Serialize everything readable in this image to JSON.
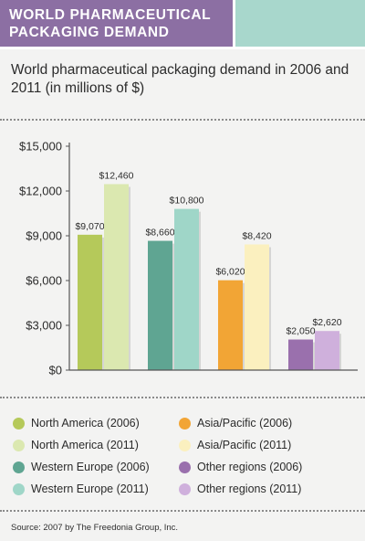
{
  "header": {
    "banner_title": "WORLD PHARMACEUTICAL PACKAGING DEMAND",
    "subtitle": "World pharmaceutical packaging demand in 2006 and 2011 (in millions of $)",
    "banner_color": "#8c6fa3",
    "accent_color": "#a8d7cc"
  },
  "chart_data": {
    "type": "bar",
    "title": "World pharmaceutical packaging demand in 2006 and 2011 (in millions of $)",
    "xlabel": "",
    "ylabel": "",
    "ylim": [
      0,
      15000
    ],
    "yticks": [
      0,
      3000,
      6000,
      9000,
      12000,
      15000
    ],
    "ytick_labels": [
      "$0",
      "$3,000",
      "$6,000",
      "$9,000",
      "$12,000",
      "$15,000"
    ],
    "grid": false,
    "legend_placement": "bottom",
    "series": [
      {
        "name": "North America (2006)",
        "value": 9070,
        "label": "$9,070",
        "color": "#b5c95a",
        "group": 0
      },
      {
        "name": "North America (2011)",
        "value": 12460,
        "label": "$12,460",
        "color": "#dbe8b0",
        "group": 0
      },
      {
        "name": "Western Europe (2006)",
        "value": 8660,
        "label": "$8,660",
        "color": "#5fa592",
        "group": 1
      },
      {
        "name": "Western Europe (2011)",
        "value": 10800,
        "label": "$10,800",
        "color": "#9fd6c8",
        "group": 1
      },
      {
        "name": "Asia/Pacific (2006)",
        "value": 6020,
        "label": "$6,020",
        "color": "#f2a535",
        "group": 2
      },
      {
        "name": "Asia/Pacific (2011)",
        "value": 8420,
        "label": "$8,420",
        "color": "#fbf0bf",
        "group": 2
      },
      {
        "name": "Other regions (2006)",
        "value": 2050,
        "label": "$2,050",
        "color": "#9a70ad",
        "group": 3
      },
      {
        "name": "Other regions (2011)",
        "value": 2620,
        "label": "$2,620",
        "color": "#cfb0dc",
        "group": 3
      }
    ]
  },
  "footer": {
    "source": "Source: 2007 by The Freedonia Group, Inc."
  }
}
